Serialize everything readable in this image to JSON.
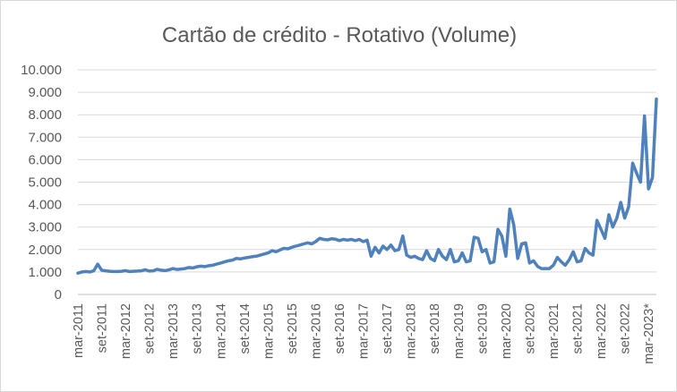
{
  "chart_data": {
    "type": "line",
    "title": "Cartão de crédito - Rotativo (Volume)",
    "xlabel": "",
    "ylabel": "",
    "ylim": [
      0,
      10000
    ],
    "y_ticks": [
      0,
      1000,
      2000,
      3000,
      4000,
      5000,
      6000,
      7000,
      8000,
      9000,
      10000
    ],
    "y_tick_labels": [
      "0",
      "1.000",
      "2.000",
      "3.000",
      "4.000",
      "5.000",
      "6.000",
      "7.000",
      "8.000",
      "9.000",
      "10.000"
    ],
    "x_tick_labels": [
      "mar-2011",
      "set-2011",
      "mar-2012",
      "set-2012",
      "mar-2013",
      "set-2013",
      "mar-2014",
      "set-2014",
      "mar-2015",
      "set-2015",
      "mar-2016",
      "set-2016",
      "mar-2017",
      "set-2017",
      "mar-2018",
      "set-2018",
      "mar-2019",
      "set-2019",
      "mar-2020",
      "set-2020",
      "mar-2021",
      "set-2021",
      "mar-2022",
      "set-2022",
      "mar-2023*"
    ],
    "grid": true,
    "legend": "none",
    "series": [
      {
        "name": "Volume",
        "color": "#4f81bd",
        "start": "mar-2011",
        "frequency": "monthly",
        "values": [
          950,
          1000,
          1020,
          1000,
          1050,
          1350,
          1080,
          1050,
          1030,
          1020,
          1020,
          1030,
          1060,
          1020,
          1030,
          1040,
          1050,
          1100,
          1040,
          1050,
          1120,
          1080,
          1060,
          1100,
          1150,
          1110,
          1130,
          1150,
          1200,
          1180,
          1230,
          1260,
          1240,
          1280,
          1300,
          1350,
          1400,
          1450,
          1500,
          1530,
          1600,
          1580,
          1620,
          1650,
          1680,
          1700,
          1750,
          1800,
          1850,
          1950,
          1900,
          1980,
          2050,
          2030,
          2100,
          2150,
          2200,
          2250,
          2300,
          2250,
          2350,
          2500,
          2450,
          2430,
          2480,
          2460,
          2400,
          2450,
          2420,
          2450,
          2400,
          2450,
          2350,
          2420,
          1700,
          2100,
          1850,
          2150,
          2000,
          2200,
          1950,
          2000,
          2600,
          1750,
          1650,
          1700,
          1600,
          1550,
          1950,
          1600,
          1500,
          2000,
          1700,
          1550,
          2000,
          1450,
          1500,
          1850,
          1450,
          1500,
          2550,
          2500,
          1900,
          2000,
          1400,
          1450,
          2900,
          2600,
          1700,
          3800,
          3100,
          1600,
          2250,
          2300,
          1400,
          1500,
          1250,
          1150,
          1150,
          1150,
          1300,
          1650,
          1450,
          1300,
          1550,
          1900,
          1450,
          1500,
          2050,
          1850,
          1750,
          3300,
          2900,
          2500,
          3550,
          3000,
          3400,
          4100,
          3400,
          3900,
          5850,
          5400,
          5000,
          7950,
          4700,
          5200,
          8700
        ]
      }
    ]
  }
}
